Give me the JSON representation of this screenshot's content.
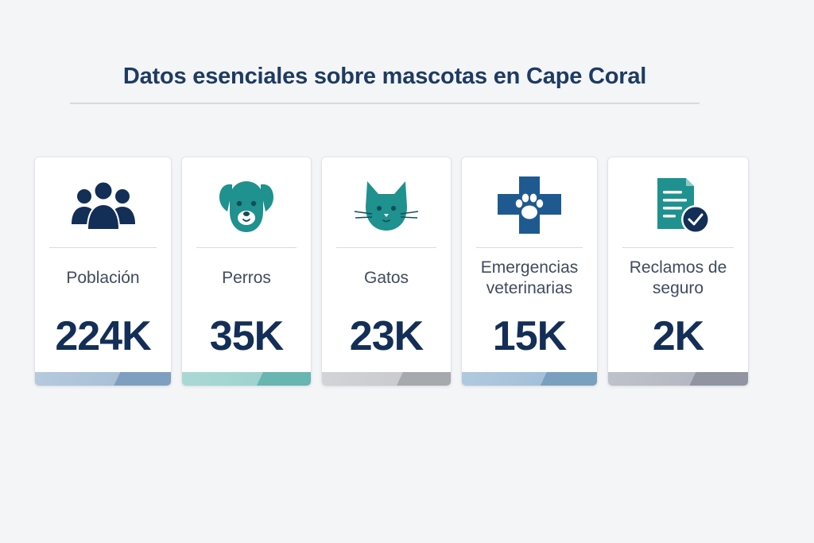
{
  "title": "Datos esenciales sobre mascotas en Cape Coral",
  "cards": [
    {
      "icon": "people-icon",
      "label": "Población",
      "value": "224K",
      "bar_colors": [
        "#a9c0d6",
        "#7f9fc0"
      ]
    },
    {
      "icon": "dog-icon",
      "label": "Perros",
      "value": "35K",
      "bar_colors": [
        "#9fd3cf",
        "#68b5b2"
      ]
    },
    {
      "icon": "cat-icon",
      "label": "Gatos",
      "value": "23K",
      "bar_colors": [
        "#c9cbcf",
        "#a6a9ae"
      ]
    },
    {
      "icon": "vet-cross-paw-icon",
      "label": "Emergencias veterinarias",
      "value": "15K",
      "bar_colors": [
        "#a4c0d9",
        "#7aa0c0"
      ]
    },
    {
      "icon": "insurance-document-check-icon",
      "label": "Reclamos de seguro",
      "value": "2K",
      "bar_colors": [
        "#b4b8c2",
        "#9095a1"
      ]
    }
  ],
  "colors": {
    "navy": "#132e57",
    "teal": "#1f918f",
    "title": "#1d3b63"
  }
}
